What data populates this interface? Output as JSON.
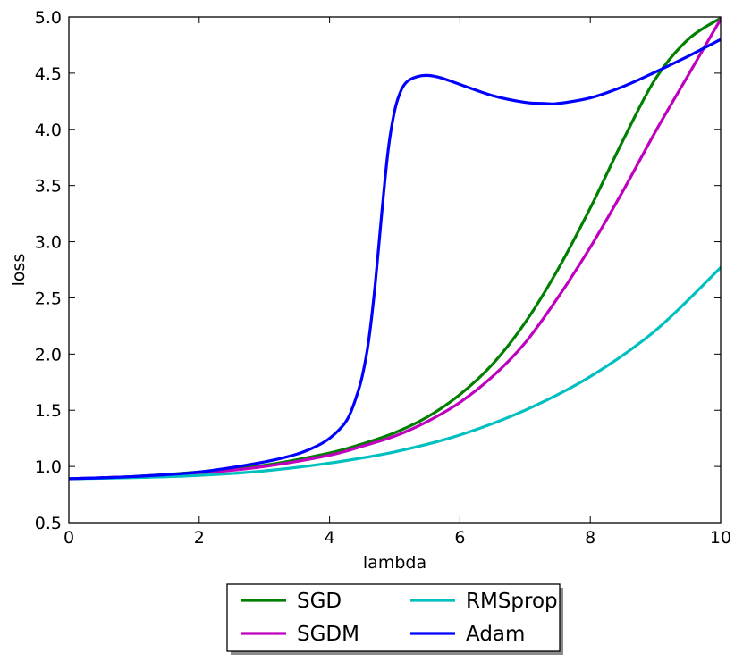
{
  "chart_data": {
    "type": "line",
    "title": "",
    "xlabel": "lambda",
    "ylabel": "loss",
    "xlim": [
      0,
      10
    ],
    "ylim": [
      0.5,
      5.0
    ],
    "xticks": [
      0,
      2,
      4,
      6,
      8,
      10
    ],
    "xtick_labels": [
      "0",
      "2",
      "4",
      "6",
      "8",
      "10"
    ],
    "yticks": [
      0.5,
      1.0,
      1.5,
      2.0,
      2.5,
      3.0,
      3.5,
      4.0,
      4.5,
      5.0
    ],
    "ytick_labels": [
      "0.5",
      "1.0",
      "1.5",
      "2.0",
      "2.5",
      "3.0",
      "3.5",
      "4.0",
      "4.5",
      "5.0"
    ],
    "grid": false,
    "legend_position": "below plot, centered, 2 columns",
    "series": [
      {
        "name": "SGD",
        "color": "#007f00",
        "x": [
          0,
          1,
          2,
          3,
          4,
          4.5,
          5,
          5.5,
          6,
          6.5,
          7,
          7.5,
          8,
          8.5,
          9,
          9.5,
          10
        ],
        "y": [
          0.89,
          0.91,
          0.95,
          1.01,
          1.12,
          1.2,
          1.3,
          1.44,
          1.64,
          1.91,
          2.28,
          2.75,
          3.3,
          3.9,
          4.45,
          4.8,
          4.99
        ]
      },
      {
        "name": "SGDM",
        "color": "#bf00bf",
        "x": [
          0,
          1,
          2,
          3,
          4,
          4.5,
          5,
          5.5,
          6,
          6.5,
          7,
          7.5,
          8,
          8.5,
          9,
          9.5,
          10
        ],
        "y": [
          0.89,
          0.91,
          0.94,
          1.0,
          1.1,
          1.18,
          1.27,
          1.4,
          1.57,
          1.8,
          2.1,
          2.5,
          2.95,
          3.45,
          3.98,
          4.48,
          4.98
        ]
      },
      {
        "name": "RMSprop",
        "color": "#00bfbf",
        "x": [
          0,
          1,
          2,
          3,
          4,
          5,
          6,
          7,
          8,
          9,
          10
        ],
        "y": [
          0.89,
          0.9,
          0.92,
          0.96,
          1.03,
          1.13,
          1.28,
          1.5,
          1.8,
          2.21,
          2.77
        ]
      },
      {
        "name": "Adam",
        "color": "#0000ff",
        "x": [
          0,
          1,
          2,
          3,
          3.5,
          3.8,
          4.0,
          4.2,
          4.3,
          4.4,
          4.5,
          4.6,
          4.7,
          4.8,
          4.9,
          5.0,
          5.1,
          5.2,
          5.35,
          5.5,
          5.7,
          6.0,
          6.5,
          7.0,
          7.3,
          7.5,
          8.0,
          8.5,
          9.0,
          9.5,
          10.0
        ],
        "y": [
          0.89,
          0.91,
          0.95,
          1.04,
          1.11,
          1.18,
          1.25,
          1.36,
          1.45,
          1.6,
          1.8,
          2.12,
          2.62,
          3.25,
          3.82,
          4.17,
          4.35,
          4.43,
          4.47,
          4.48,
          4.46,
          4.4,
          4.3,
          4.24,
          4.23,
          4.23,
          4.28,
          4.38,
          4.51,
          4.65,
          4.8
        ]
      }
    ]
  }
}
